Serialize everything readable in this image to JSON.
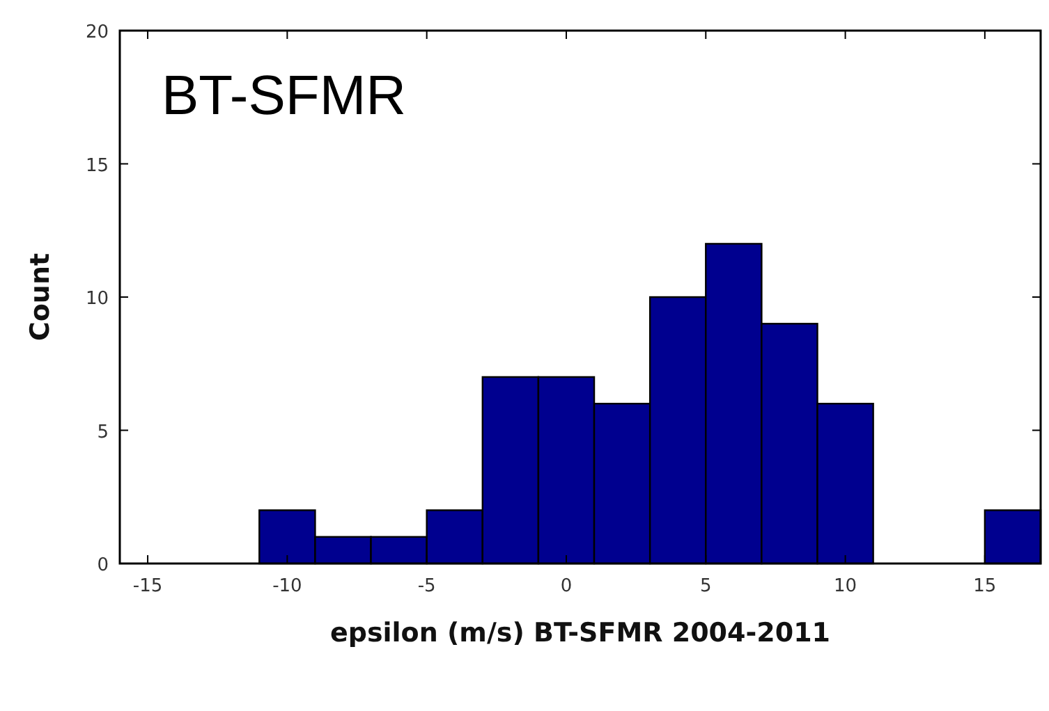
{
  "chart_data": {
    "type": "histogram",
    "xlabel": "epsilon (m/s) BT-SFMR 2004-2011",
    "ylabel": "Count",
    "annotations": [
      "BT-SFMR"
    ],
    "bins": [
      -11,
      -9,
      -7,
      -5,
      -3,
      -1,
      1,
      3,
      5,
      7,
      9,
      11,
      13,
      15,
      17
    ],
    "values": [
      2,
      1,
      1,
      2,
      7,
      7,
      6,
      10,
      12,
      9,
      6,
      0,
      0,
      2
    ],
    "color": "#00008f",
    "xlim": [
      -16,
      17
    ],
    "xticks": [
      -15,
      -10,
      -5,
      0,
      5,
      10,
      15
    ],
    "ylim": [
      0,
      20
    ],
    "yticks": [
      0,
      5,
      10,
      15,
      20
    ]
  }
}
